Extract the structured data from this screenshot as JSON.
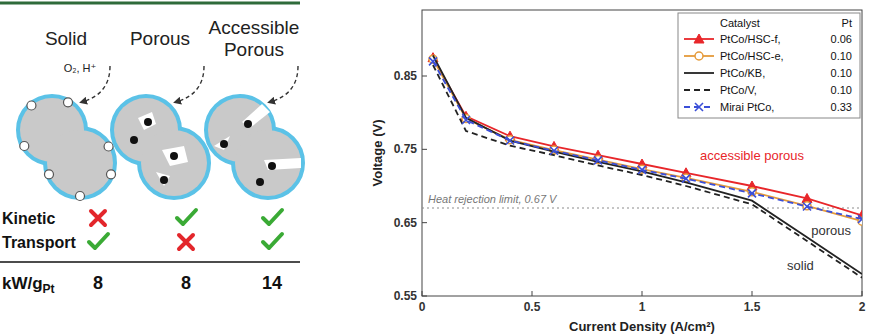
{
  "chart_data": {
    "type": "line",
    "xlabel": "Current Density (A/cm²)",
    "ylabel": "Voltage (V)",
    "x": [
      0.05,
      0.2,
      0.4,
      0.6,
      0.8,
      1.0,
      1.2,
      1.5,
      1.75,
      2.0
    ],
    "xlim": [
      0,
      2
    ],
    "xticks": [
      0,
      0.5,
      1,
      1.5,
      2
    ],
    "ylim": [
      0.55,
      0.94
    ],
    "yticks": [
      0.55,
      0.65,
      0.75,
      0.85
    ],
    "grid": false,
    "legend": "top-right",
    "legend_header": [
      "Catalyst",
      "Pt"
    ],
    "series": [
      {
        "name": "PtCo/HSC-f,",
        "pt": "0.06",
        "color": "#e8262a",
        "marker": "triangle",
        "line_style": "solid",
        "values": [
          0.875,
          0.795,
          0.768,
          0.754,
          0.742,
          0.73,
          0.718,
          0.7,
          0.683,
          0.66
        ]
      },
      {
        "name": "PtCo/HSC-e,",
        "pt": "0.10",
        "color": "#e59a3a",
        "marker": "circle",
        "line_style": "solid",
        "values": [
          0.873,
          0.792,
          0.763,
          0.749,
          0.736,
          0.723,
          0.711,
          0.692,
          0.673,
          0.652
        ]
      },
      {
        "name": "PtCo/KB,",
        "pt": "0.10",
        "color": "#222222",
        "marker": "none",
        "line_style": "solid",
        "values": [
          0.878,
          0.793,
          0.762,
          0.747,
          0.733,
          0.72,
          0.705,
          0.68,
          0.63,
          0.58
        ]
      },
      {
        "name": "PtCo/V,",
        "pt": "0.10",
        "color": "#222222",
        "marker": "none",
        "line_style": "dashed",
        "values": [
          0.865,
          0.775,
          0.755,
          0.742,
          0.728,
          0.715,
          0.7,
          0.675,
          0.625,
          0.575
        ]
      },
      {
        "name": "Mirai PtCo,",
        "pt": "0.33",
        "color": "#3b4fd8",
        "marker": "x",
        "line_style": "dashed",
        "values": [
          0.87,
          0.79,
          0.762,
          0.748,
          0.735,
          0.722,
          0.71,
          0.69,
          0.672,
          0.655
        ]
      }
    ],
    "hline": {
      "value": 0.67,
      "label": "Heat rejection limit, 0.67 V",
      "color": "#8c8c8c",
      "line_style": "dotted"
    },
    "annotations": [
      {
        "text": "accessible porous",
        "x": 1.5,
        "y": 0.735,
        "color": "#e8262a"
      },
      {
        "text": "porous",
        "x": 1.86,
        "y": 0.633,
        "color": "#333333"
      },
      {
        "text": "solid",
        "x": 1.72,
        "y": 0.585,
        "color": "#333333"
      }
    ]
  },
  "diagram": {
    "columns": [
      "Solid",
      "Porous",
      "Accessible Porous"
    ],
    "arrow_label": "O₂, H⁺",
    "rows": [
      {
        "label": "Kinetic",
        "values": [
          false,
          true,
          true
        ]
      },
      {
        "label": "Transport",
        "values": [
          true,
          false,
          true
        ]
      }
    ],
    "metric": {
      "label": "kW/g",
      "label_sub": "Pt",
      "values": [
        8,
        8,
        14
      ]
    }
  }
}
